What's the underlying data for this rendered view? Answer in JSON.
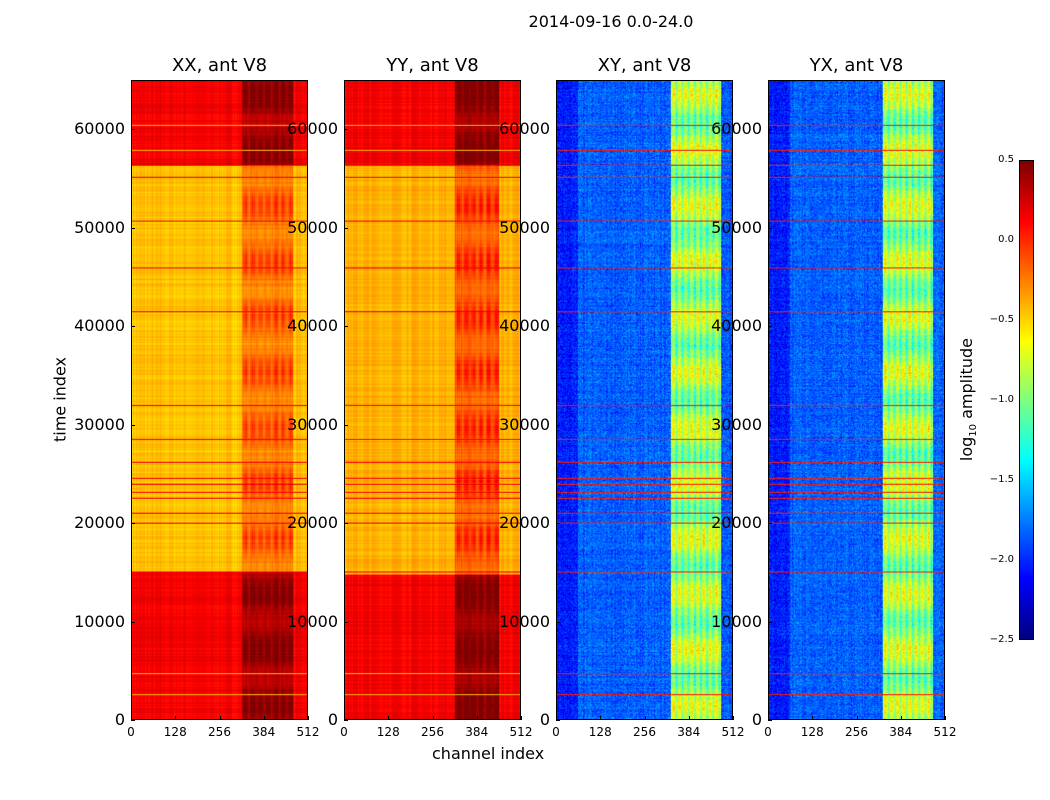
{
  "chart_data": {
    "type": "heatmap",
    "title": "2014-09-16 0.0-24.0",
    "xlabel": "channel index",
    "ylabel": "time index",
    "xlim": [
      0,
      512
    ],
    "ylim": [
      0,
      65000
    ],
    "xticks": [
      "0",
      "128",
      "256",
      "384",
      "512"
    ],
    "yticks": [
      "0",
      "10000",
      "20000",
      "30000",
      "40000",
      "50000",
      "60000"
    ],
    "colormap": "jet",
    "colorbar": {
      "label": "log10 amplitude",
      "label_main": "log",
      "label_sub": "10",
      "label_rest": " amplitude",
      "range": [
        -2.5,
        0.5
      ],
      "ticks": [
        "0.5",
        "0.0",
        "−0.5",
        "−1.0",
        "−1.5",
        "−2.0",
        "−2.5"
      ]
    },
    "panels": [
      {
        "title": "XX, ant V8",
        "kind": "auto",
        "time_bands": [
          [
            0,
            15000,
            0.15
          ],
          [
            15000,
            56500,
            -0.45
          ],
          [
            56500,
            65000,
            0.15
          ]
        ],
        "feature_channels": [
          320,
          470
        ],
        "feature_delta": 0.3
      },
      {
        "title": "YY, ant V8",
        "kind": "auto",
        "time_bands": [
          [
            0,
            14800,
            0.15
          ],
          [
            14800,
            56500,
            -0.4
          ],
          [
            56500,
            65000,
            0.15
          ]
        ],
        "feature_channels": [
          320,
          450
        ],
        "feature_delta": 0.35
      },
      {
        "title": "XY, ant V8",
        "kind": "cross",
        "time_bands": [
          [
            0,
            65000,
            -1.85
          ]
        ],
        "feature_channels": [
          330,
          480
        ],
        "feature_delta": 1.1
      },
      {
        "title": "YX, ant V8",
        "kind": "cross",
        "time_bands": [
          [
            0,
            65000,
            -1.85
          ]
        ],
        "feature_channels": [
          330,
          480
        ],
        "feature_delta": 1.1
      }
    ],
    "flagged_times": [
      2500,
      4700,
      15000,
      20000,
      21000,
      22500,
      23200,
      24000,
      24600,
      26200,
      28500,
      32000,
      41500,
      46000,
      50800,
      55300,
      56500,
      58000,
      60500
    ]
  }
}
